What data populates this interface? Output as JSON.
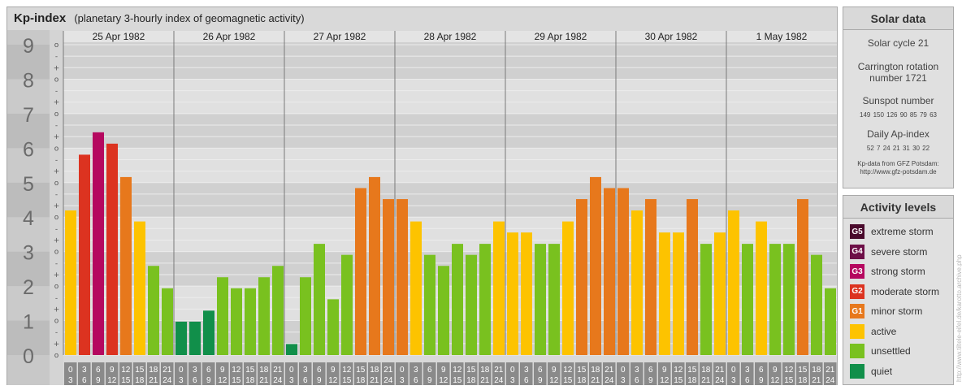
{
  "header": {
    "title": "Kp-index",
    "subtitle": "(planetary 3-hourly index of geomagnetic activity)"
  },
  "chart_data": {
    "type": "bar",
    "days": [
      "25 Apr 1982",
      "26 Apr 1982",
      "27 Apr 1982",
      "28 Apr 1982",
      "29 Apr 1982",
      "30 Apr 1982",
      "1 May 1982"
    ],
    "y_ticks": [
      "0",
      "1",
      "2",
      "3",
      "4",
      "5",
      "6",
      "7",
      "8",
      "9"
    ],
    "sub_ticks": [
      "o",
      "+",
      "-"
    ],
    "ylim": [
      0,
      9.33
    ],
    "interval_starts": [
      "0",
      "3",
      "6",
      "9",
      "12",
      "15",
      "18",
      "21"
    ],
    "interval_ends": [
      "3",
      "6",
      "9",
      "12",
      "15",
      "18",
      "21",
      "24"
    ],
    "values": [
      4.33,
      6.0,
      6.67,
      6.33,
      5.33,
      4.0,
      2.67,
      2.0,
      1.0,
      1.0,
      1.33,
      2.33,
      2.0,
      2.0,
      2.33,
      2.67,
      0.33,
      2.33,
      3.33,
      1.67,
      3.0,
      5.0,
      5.33,
      4.67,
      4.67,
      4.0,
      3.0,
      2.67,
      3.33,
      3.0,
      3.33,
      4.0,
      3.67,
      3.67,
      3.33,
      3.33,
      4.0,
      4.67,
      5.33,
      5.0,
      5.0,
      4.33,
      4.67,
      3.67,
      3.67,
      4.67,
      3.33,
      3.67,
      4.33,
      3.33,
      4.0,
      3.33,
      3.33,
      4.67,
      3.0,
      2.0
    ],
    "colors": {
      "quiet": "#118f4a",
      "unsettled": "#79c11f",
      "active": "#fdc300",
      "minor": "#e7781c",
      "moderate": "#dc3320",
      "strong": "#b5085f",
      "severe": "#6d0f47",
      "extreme": "#4a0a2c"
    }
  },
  "solar": {
    "title": "Solar data",
    "cycle": "Solar cycle 21",
    "carrington_line1": "Carrington rotation",
    "carrington_line2": "number 1721",
    "sunspot_label": "Sunspot number",
    "sunspot_values": "149 150 126 90 85 79 63",
    "ap_label": "Daily Ap-index",
    "ap_values": "52 7 24 21 31 30 22",
    "source_line1": "Kp-data from GFZ Potsdam:",
    "source_line2": "http://www.gfz-potsdam.de"
  },
  "legend": {
    "title": "Activity levels",
    "items": [
      {
        "code": "G5",
        "label": "extreme storm",
        "color": "#4a0a2c"
      },
      {
        "code": "G4",
        "label": "severe storm",
        "color": "#6d0f47"
      },
      {
        "code": "G3",
        "label": "strong storm",
        "color": "#b5085f"
      },
      {
        "code": "G2",
        "label": "moderate storm",
        "color": "#dc3320"
      },
      {
        "code": "G1",
        "label": "minor storm",
        "color": "#e7781c"
      },
      {
        "code": "",
        "label": "active",
        "color": "#fdc300"
      },
      {
        "code": "",
        "label": "unsettled",
        "color": "#79c11f"
      },
      {
        "code": "",
        "label": "quiet",
        "color": "#118f4a"
      }
    ]
  },
  "watermark": "http://www.tiltele-eifel.de/karotto.archive.php"
}
